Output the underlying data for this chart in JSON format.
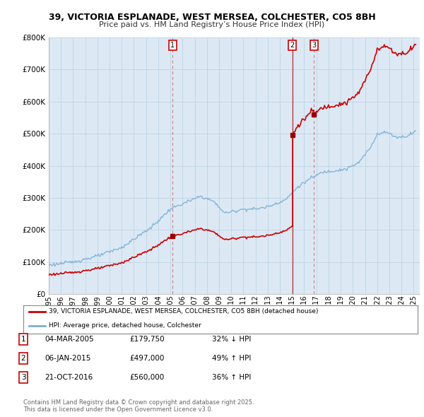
{
  "title_line1": "39, VICTORIA ESPLANADE, WEST MERSEA, COLCHESTER, CO5 8BH",
  "title_line2": "Price paid vs. HM Land Registry’s House Price Index (HPI)",
  "property_color": "#cc0000",
  "hpi_color": "#7bafd4",
  "plot_bg": "#dce9f5",
  "ylim": [
    0,
    800000
  ],
  "yticks": [
    0,
    100000,
    200000,
    300000,
    400000,
    500000,
    600000,
    700000,
    800000
  ],
  "xlim": [
    1995.0,
    2025.5
  ],
  "sale_dates_decimal": [
    2005.17,
    2015.02,
    2016.81
  ],
  "sale_prices": [
    179750,
    497000,
    560000
  ],
  "sale_labels": [
    "1",
    "2",
    "3"
  ],
  "legend_property": "39, VICTORIA ESPLANADE, WEST MERSEA, COLCHESTER, CO5 8BH (detached house)",
  "legend_hpi": "HPI: Average price, detached house, Colchester",
  "table_rows": [
    {
      "num": "1",
      "date": "04-MAR-2005",
      "price": "£179,750",
      "change": "32% ↓ HPI"
    },
    {
      "num": "2",
      "date": "06-JAN-2015",
      "price": "£497,000",
      "change": "49% ↑ HPI"
    },
    {
      "num": "3",
      "date": "21-OCT-2016",
      "price": "£560,000",
      "change": "36% ↑ HPI"
    }
  ],
  "footnote": "Contains HM Land Registry data © Crown copyright and database right 2025.\nThis data is licensed under the Open Government Licence v3.0.",
  "background_color": "#ffffff",
  "grid_color": "#b8cfe0"
}
